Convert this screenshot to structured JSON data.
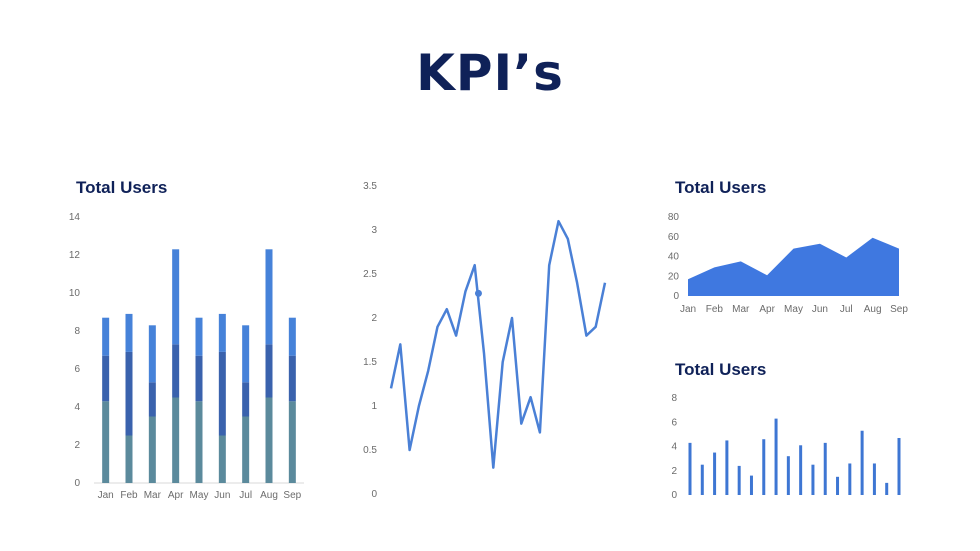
{
  "page": {
    "title": "KPI’s"
  },
  "colors": {
    "title": "#0f2158",
    "stack_bottom": "#5b8a9c",
    "stack_middle": "#3a62ad",
    "stack_top": "#4682d9",
    "line": "#4a80d6",
    "area": "#3f78e0",
    "thin_bar": "#3e76d3",
    "tick": "#6b6b6b"
  },
  "chart_data": [
    {
      "id": "stacked",
      "type": "bar",
      "stacked": true,
      "title": "Total Users",
      "categories": [
        "Jan",
        "Feb",
        "Mar",
        "Apr",
        "May",
        "Jun",
        "Jul",
        "Aug",
        "Sep"
      ],
      "series": [
        {
          "values": [
            4.3,
            2.5,
            3.5,
            4.5,
            4.3,
            2.5,
            3.5,
            4.5,
            4.3
          ]
        },
        {
          "values": [
            2.4,
            4.4,
            1.8,
            2.8,
            2.4,
            4.4,
            1.8,
            2.8,
            2.4
          ]
        },
        {
          "values": [
            2.0,
            2.0,
            3.0,
            5.0,
            2.0,
            2.0,
            3.0,
            5.0,
            2.0
          ]
        }
      ],
      "ylim": [
        0,
        14
      ],
      "yticks": [
        0,
        2,
        4,
        6,
        8,
        10,
        12,
        14
      ]
    },
    {
      "id": "line",
      "type": "line",
      "title": "",
      "values": [
        1.2,
        1.7,
        0.5,
        1.0,
        1.4,
        1.9,
        2.1,
        1.8,
        2.3,
        2.6,
        1.6,
        0.3,
        1.5,
        2.0,
        0.8,
        1.1,
        0.7,
        2.6,
        3.1,
        2.9,
        2.4,
        1.8,
        1.9,
        2.4
      ],
      "marker_index": 9.4,
      "marker_value": 2.28,
      "ylim": [
        0,
        3.5
      ],
      "yticks": [
        "0",
        "0.5",
        "1",
        "1.5",
        "2",
        "2.5",
        "3",
        "3.5"
      ]
    },
    {
      "id": "area",
      "type": "area",
      "title": "Total Users",
      "categories": [
        "Jan",
        "Feb",
        "Mar",
        "Apr",
        "May",
        "Jun",
        "Jul",
        "Aug",
        "Sep"
      ],
      "values": [
        17,
        29,
        35,
        21,
        48,
        53,
        39,
        59,
        48
      ],
      "ylim": [
        0,
        80
      ],
      "yticks": [
        0,
        20,
        40,
        60,
        80
      ]
    },
    {
      "id": "thin",
      "type": "bar",
      "title": "Total Users",
      "values": [
        4.3,
        2.5,
        3.5,
        4.5,
        2.4,
        1.6,
        4.6,
        6.3,
        3.2,
        4.1,
        2.5,
        4.3,
        1.5,
        2.6,
        5.3,
        2.6,
        1.0,
        4.7
      ],
      "ylim": [
        0,
        8
      ],
      "yticks": [
        0,
        2,
        4,
        6,
        8
      ]
    }
  ]
}
